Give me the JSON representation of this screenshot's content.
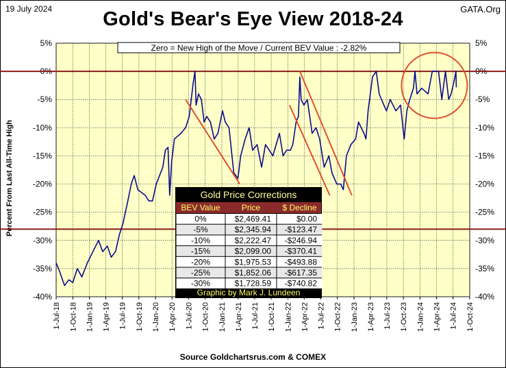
{
  "header": {
    "date": "19 July 2024",
    "brand": "GATA.Org"
  },
  "chart_data": {
    "type": "line",
    "title": "Gold's Bear's Eye View 2018-24",
    "annotation": "Zero = New High of the Move / Current  BEV Value : -2.82%",
    "ylabel": "Percent    From   Last   All-Time  High",
    "source": "Source Goldchartsrus.com  & COMEX",
    "ylim": [
      -40,
      5
    ],
    "xlim": [
      "2018-07-01",
      "2024-10-01"
    ],
    "grid": true,
    "y_ticks": [
      5,
      0,
      -5,
      -10,
      -15,
      -20,
      -25,
      -30,
      -35,
      -40
    ],
    "y_tick_labels": [
      "5%",
      "0%",
      "-5%",
      "-10%",
      "-15%",
      "-20%",
      "-25%",
      "-30%",
      "-35%",
      "-40%"
    ],
    "x_ticks": [
      "2018-07-01",
      "2018-10-01",
      "2019-01-01",
      "2019-04-01",
      "2019-07-01",
      "2019-10-01",
      "2020-01-01",
      "2020-04-01",
      "2020-07-01",
      "2020-10-01",
      "2021-01-01",
      "2021-04-01",
      "2021-07-01",
      "2021-10-01",
      "2022-01-01",
      "2022-04-01",
      "2022-07-01",
      "2022-10-01",
      "2023-01-01",
      "2023-04-01",
      "2023-07-01",
      "2023-10-01",
      "2024-01-01",
      "2024-04-01",
      "2024-07-01",
      "2024-10-01"
    ],
    "x_tick_labels": [
      "1-Jul-18",
      "1-Oct-18",
      "1-Jan-19",
      "1-Apr-19",
      "1-Jul-19",
      "1-Oct-19",
      "1-Jan-20",
      "1-Apr-20",
      "1-Jul-20",
      "1-Oct-20",
      "1-Jan-21",
      "1-Apr-21",
      "1-Jul-21",
      "1-Oct-21",
      "1-Jan-22",
      "1-Apr-22",
      "1-Jul-22",
      "1-Oct-22",
      "1-Jan-23",
      "1-Apr-23",
      "1-Jul-23",
      "1-Oct-23",
      "1-Jan-24",
      "1-Apr-24",
      "1-Jul-24",
      "1-Oct-24"
    ],
    "reference_lines": [
      0,
      -28
    ],
    "series": [
      {
        "color": "#0a0a8c",
        "points": [
          [
            "2018-07-01",
            -34
          ],
          [
            "2018-07-20",
            -35.5
          ],
          [
            "2018-08-16",
            -38
          ],
          [
            "2018-09-10",
            -37
          ],
          [
            "2018-10-01",
            -37.5
          ],
          [
            "2018-10-26",
            -35
          ],
          [
            "2018-11-20",
            -36.5
          ],
          [
            "2018-12-20",
            -34
          ],
          [
            "2019-01-20",
            -32
          ],
          [
            "2019-02-20",
            -30
          ],
          [
            "2019-03-15",
            -32
          ],
          [
            "2019-04-10",
            -31
          ],
          [
            "2019-05-01",
            -33
          ],
          [
            "2019-05-25",
            -32
          ],
          [
            "2019-06-15",
            -29
          ],
          [
            "2019-07-05",
            -27
          ],
          [
            "2019-08-01",
            -23
          ],
          [
            "2019-08-20",
            -20
          ],
          [
            "2019-09-05",
            -18.5
          ],
          [
            "2019-09-25",
            -21
          ],
          [
            "2019-10-15",
            -21.5
          ],
          [
            "2019-11-05",
            -22
          ],
          [
            "2019-11-25",
            -23
          ],
          [
            "2019-12-15",
            -23
          ],
          [
            "2020-01-05",
            -20
          ],
          [
            "2020-02-10",
            -17
          ],
          [
            "2020-02-24",
            -14
          ],
          [
            "2020-03-10",
            -13.5
          ],
          [
            "2020-03-19",
            -22
          ],
          [
            "2020-03-30",
            -16
          ],
          [
            "2020-04-14",
            -12
          ],
          [
            "2020-05-20",
            -11
          ],
          [
            "2020-06-15",
            -10
          ],
          [
            "2020-07-05",
            -8
          ],
          [
            "2020-07-27",
            -2
          ],
          [
            "2020-08-06",
            0
          ],
          [
            "2020-08-12",
            -6
          ],
          [
            "2020-08-25",
            -4
          ],
          [
            "2020-09-10",
            -5
          ],
          [
            "2020-09-25",
            -9
          ],
          [
            "2020-10-10",
            -8
          ],
          [
            "2020-10-30",
            -9
          ],
          [
            "2020-11-20",
            -12
          ],
          [
            "2020-12-10",
            -11
          ],
          [
            "2021-01-05",
            -7
          ],
          [
            "2021-01-20",
            -9
          ],
          [
            "2021-02-10",
            -10
          ],
          [
            "2021-03-08",
            -18
          ],
          [
            "2021-03-31",
            -19
          ],
          [
            "2021-04-15",
            -15
          ],
          [
            "2021-05-10",
            -12
          ],
          [
            "2021-06-01",
            -10
          ],
          [
            "2021-06-20",
            -14
          ],
          [
            "2021-07-15",
            -13
          ],
          [
            "2021-08-09",
            -17
          ],
          [
            "2021-08-30",
            -13
          ],
          [
            "2021-09-20",
            -14
          ],
          [
            "2021-10-10",
            -15
          ],
          [
            "2021-11-15",
            -11
          ],
          [
            "2021-12-05",
            -15
          ],
          [
            "2021-12-25",
            -14
          ],
          [
            "2022-01-15",
            -14
          ],
          [
            "2022-01-28",
            -13
          ],
          [
            "2022-02-15",
            -9
          ],
          [
            "2022-02-28",
            -8
          ],
          [
            "2022-03-08",
            -1
          ],
          [
            "2022-03-15",
            -5
          ],
          [
            "2022-03-31",
            -6
          ],
          [
            "2022-04-18",
            -5
          ],
          [
            "2022-05-15",
            -11
          ],
          [
            "2022-06-05",
            -10
          ],
          [
            "2022-06-25",
            -12
          ],
          [
            "2022-07-20",
            -17
          ],
          [
            "2022-08-15",
            -15
          ],
          [
            "2022-09-01",
            -18
          ],
          [
            "2022-09-28",
            -20
          ],
          [
            "2022-10-20",
            -20
          ],
          [
            "2022-11-03",
            -21
          ],
          [
            "2022-11-20",
            -15
          ],
          [
            "2022-12-15",
            -13
          ],
          [
            "2023-01-10",
            -12
          ],
          [
            "2023-01-26",
            -9
          ],
          [
            "2023-02-25",
            -11
          ],
          [
            "2023-03-08",
            -12
          ],
          [
            "2023-03-20",
            -7
          ],
          [
            "2023-04-13",
            -1
          ],
          [
            "2023-05-04",
            0
          ],
          [
            "2023-05-20",
            -4
          ],
          [
            "2023-06-15",
            -6
          ],
          [
            "2023-06-29",
            -7
          ],
          [
            "2023-07-20",
            -5
          ],
          [
            "2023-08-20",
            -7
          ],
          [
            "2023-09-15",
            -6
          ],
          [
            "2023-10-05",
            -12
          ],
          [
            "2023-10-20",
            -7
          ],
          [
            "2023-11-05",
            -5
          ],
          [
            "2023-11-25",
            -3
          ],
          [
            "2023-12-04",
            0
          ],
          [
            "2023-12-15",
            -4
          ],
          [
            "2024-01-10",
            -3
          ],
          [
            "2024-02-14",
            -4
          ],
          [
            "2024-03-08",
            0
          ],
          [
            "2024-04-12",
            0
          ],
          [
            "2024-04-30",
            -5
          ],
          [
            "2024-05-20",
            0
          ],
          [
            "2024-06-07",
            -5
          ],
          [
            "2024-06-20",
            -4
          ],
          [
            "2024-07-05",
            -2
          ],
          [
            "2024-07-17",
            0
          ],
          [
            "2024-07-19",
            -2.82
          ]
        ]
      }
    ],
    "annotations_lines": [
      {
        "from": [
          "2020-06-15",
          -5
        ],
        "to": [
          "2021-04-10",
          -20
        ],
        "color": "#e05030"
      },
      {
        "from": [
          "2022-01-10",
          -6
        ],
        "to": [
          "2022-08-20",
          -22
        ],
        "color": "#e05030"
      },
      {
        "from": [
          "2022-03-08",
          0
        ],
        "to": [
          "2022-12-20",
          -22
        ],
        "color": "#e05030"
      }
    ],
    "circle": {
      "center": [
        "2024-03-20",
        -2.5
      ],
      "color": "#e05030"
    }
  },
  "table": {
    "title": "Gold Price Corrections",
    "headers": [
      "BEV Value",
      "Price",
      "$ Decline"
    ],
    "rows": [
      [
        "0%",
        "$2,469.41",
        "$0.00"
      ],
      [
        "-5%",
        "$2,345.94",
        "-$123.47"
      ],
      [
        "-10%",
        "$2,222.47",
        "-$246.94"
      ],
      [
        "-15%",
        "$2,099.00",
        "-$370.41"
      ],
      [
        "-20%",
        "$1,975.53",
        "-$493.88"
      ],
      [
        "-25%",
        "$1,852.06",
        "-$617.35"
      ],
      [
        "-30%",
        "$1,728.59",
        "-$740.82"
      ]
    ],
    "footer": "Graphic by Mark J. Lundeen"
  },
  "colors": {
    "plot_bg": "#ffffc8",
    "line": "#0a0a8c",
    "ref": "#8b1a1a",
    "accent": "#e05030",
    "table_bg": "#000000",
    "table_head": "#8b2a2a",
    "table_title": "#ffff99"
  }
}
